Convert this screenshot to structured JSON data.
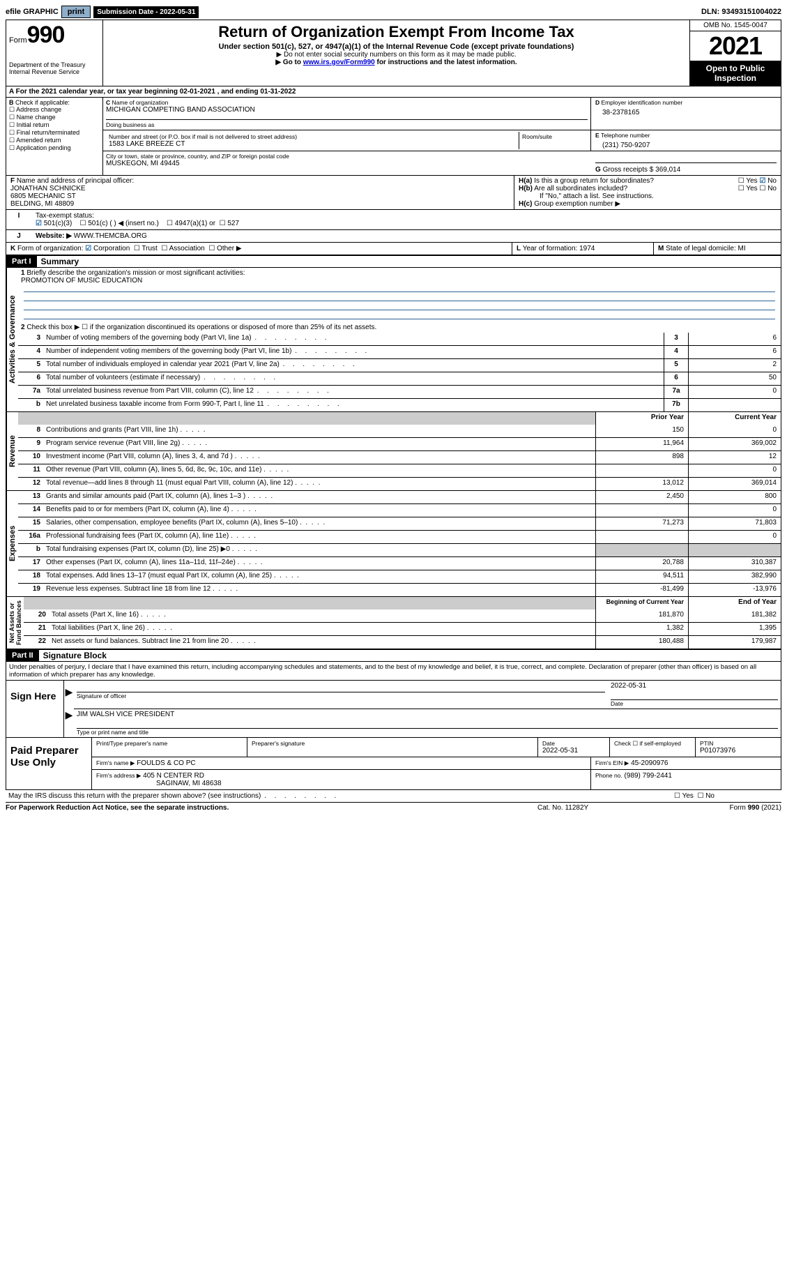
{
  "topbar": {
    "efile_label": "efile GRAPHIC",
    "print": "print",
    "sub_label": "Submission Date - 2022-05-31",
    "dln": "DLN: 93493151004022"
  },
  "header": {
    "form_word": "Form",
    "form_num": "990",
    "dept": "Department of the Treasury",
    "irs": "Internal Revenue Service",
    "title": "Return of Organization Exempt From Income Tax",
    "sub": "Under section 501(c), 527, or 4947(a)(1) of the Internal Revenue Code (except private foundations)",
    "note1": "Do not enter social security numbers on this form as it may be made public.",
    "note2_pre": "Go to ",
    "note2_link": "www.irs.gov/Form990",
    "note2_post": " for instructions and the latest information.",
    "omb": "OMB No. 1545-0047",
    "year": "2021",
    "open": "Open to Public Inspection"
  },
  "A": {
    "text": "For the 2021 calendar year, or tax year beginning 02-01-2021   , and ending 01-31-2022"
  },
  "B": {
    "label": "Check if applicable:",
    "items": [
      "Address change",
      "Name change",
      "Initial return",
      "Final return/terminated",
      "Amended return",
      "Application pending"
    ]
  },
  "C": {
    "name_label": "Name of organization",
    "name": "MICHIGAN COMPETING BAND ASSOCIATION",
    "dba_label": "Doing business as",
    "dba": "",
    "street_label": "Number and street (or P.O. box if mail is not delivered to street address)",
    "room_label": "Room/suite",
    "street": "1583 LAKE BREEZE CT",
    "city_label": "City or town, state or province, country, and ZIP or foreign postal code",
    "city": "MUSKEGON, MI  49445"
  },
  "D": {
    "label": "Employer identification number",
    "val": "38-2378165"
  },
  "E": {
    "label": "Telephone number",
    "val": "(231) 750-9207"
  },
  "G": {
    "label": "Gross receipts $",
    "val": "369,014"
  },
  "F": {
    "label": "Name and address of principal officer:",
    "name": "JONATHAN SCHNICKE",
    "addr1": "6805 MECHANIC ST",
    "addr2": "BELDING, MI  48809"
  },
  "H": {
    "a": "Is this a group return for subordinates?",
    "a_yes": "Yes",
    "a_no": "No",
    "b": "Are all subordinates included?",
    "b_note": "If \"No,\" attach a list. See instructions.",
    "c": "Group exemption number ▶"
  },
  "I": {
    "label": "Tax-exempt status:",
    "o1": "501(c)(3)",
    "o2": "501(c) (  ) ◀ (insert no.)",
    "o3": "4947(a)(1) or",
    "o4": "527"
  },
  "J": {
    "label": "Website: ▶",
    "val": "WWW.THEMCBA.ORG"
  },
  "K": {
    "label": "Form of organization:",
    "o1": "Corporation",
    "o2": "Trust",
    "o3": "Association",
    "o4": "Other ▶"
  },
  "L": {
    "label": "Year of formation:",
    "val": "1974"
  },
  "M": {
    "label": "State of legal domicile:",
    "val": "MI"
  },
  "part1": {
    "hdr": "Part I",
    "title": "Summary",
    "q1": "Briefly describe the organization's mission or most significant activities:",
    "mission": "PROMOTION OF MUSIC EDUCATION",
    "q2": "Check this box ▶ ☐  if the organization discontinued its operations or disposed of more than 25% of its net assets.",
    "rows_gov": [
      {
        "n": "3",
        "d": "Number of voting members of the governing body (Part VI, line 1a)",
        "box": "3",
        "v": "6"
      },
      {
        "n": "4",
        "d": "Number of independent voting members of the governing body (Part VI, line 1b)",
        "box": "4",
        "v": "6"
      },
      {
        "n": "5",
        "d": "Total number of individuals employed in calendar year 2021 (Part V, line 2a)",
        "box": "5",
        "v": "2"
      },
      {
        "n": "6",
        "d": "Total number of volunteers (estimate if necessary)",
        "box": "6",
        "v": "50"
      },
      {
        "n": "7a",
        "d": "Total unrelated business revenue from Part VIII, column (C), line 12",
        "box": "7a",
        "v": "0"
      },
      {
        "n": "b",
        "d": "Net unrelated business taxable income from Form 990-T, Part I, line 11",
        "box": "7b",
        "v": ""
      }
    ],
    "col_prior": "Prior Year",
    "col_curr": "Current Year",
    "rows_rev": [
      {
        "n": "8",
        "d": "Contributions and grants (Part VIII, line 1h)",
        "p": "150",
        "c": "0"
      },
      {
        "n": "9",
        "d": "Program service revenue (Part VIII, line 2g)",
        "p": "11,964",
        "c": "369,002"
      },
      {
        "n": "10",
        "d": "Investment income (Part VIII, column (A), lines 3, 4, and 7d )",
        "p": "898",
        "c": "12"
      },
      {
        "n": "11",
        "d": "Other revenue (Part VIII, column (A), lines 5, 6d, 8c, 9c, 10c, and 11e)",
        "p": "",
        "c": "0"
      },
      {
        "n": "12",
        "d": "Total revenue—add lines 8 through 11 (must equal Part VIII, column (A), line 12)",
        "p": "13,012",
        "c": "369,014"
      }
    ],
    "rows_exp": [
      {
        "n": "13",
        "d": "Grants and similar amounts paid (Part IX, column (A), lines 1–3 )",
        "p": "2,450",
        "c": "800"
      },
      {
        "n": "14",
        "d": "Benefits paid to or for members (Part IX, column (A), line 4)",
        "p": "",
        "c": "0"
      },
      {
        "n": "15",
        "d": "Salaries, other compensation, employee benefits (Part IX, column (A), lines 5–10)",
        "p": "71,273",
        "c": "71,803"
      },
      {
        "n": "16a",
        "d": "Professional fundraising fees (Part IX, column (A), line 11e)",
        "p": "",
        "c": "0"
      },
      {
        "n": "b",
        "d": "Total fundraising expenses (Part IX, column (D), line 25) ▶0",
        "p": "__shade__",
        "c": "__shade__"
      },
      {
        "n": "17",
        "d": "Other expenses (Part IX, column (A), lines 11a–11d, 11f–24e)",
        "p": "20,788",
        "c": "310,387"
      },
      {
        "n": "18",
        "d": "Total expenses. Add lines 13–17 (must equal Part IX, column (A), line 25)",
        "p": "94,511",
        "c": "382,990"
      },
      {
        "n": "19",
        "d": "Revenue less expenses. Subtract line 18 from line 12",
        "p": "-81,499",
        "c": "-13,976"
      }
    ],
    "col_begin": "Beginning of Current Year",
    "col_end": "End of Year",
    "rows_net": [
      {
        "n": "20",
        "d": "Total assets (Part X, line 16)",
        "p": "181,870",
        "c": "181,382"
      },
      {
        "n": "21",
        "d": "Total liabilities (Part X, line 26)",
        "p": "1,382",
        "c": "1,395"
      },
      {
        "n": "22",
        "d": "Net assets or fund balances. Subtract line 21 from line 20",
        "p": "180,488",
        "c": "179,987"
      }
    ]
  },
  "part2": {
    "hdr": "Part II",
    "title": "Signature Block",
    "decl": "Under penalties of perjury, I declare that I have examined this return, including accompanying schedules and statements, and to the best of my knowledge and belief, it is true, correct, and complete. Declaration of preparer (other than officer) is based on all information of which preparer has any knowledge.",
    "sign_here": "Sign Here",
    "sig_officer": "Signature of officer",
    "sig_date": "Date",
    "date_val": "2022-05-31",
    "officer_name": "JIM WALSH  VICE PRESIDENT",
    "officer_label": "Type or print name and title"
  },
  "paid": {
    "left": "Paid Preparer Use Only",
    "c1": "Print/Type preparer's name",
    "c2": "Preparer's signature",
    "c3": "Date",
    "c3v": "2022-05-31",
    "c4": "Check ☐ if self-employed",
    "c5l": "PTIN",
    "c5v": "P01073976",
    "firm_name_l": "Firm's name    ▶",
    "firm_name": "FOULDS & CO PC",
    "firm_ein_l": "Firm's EIN ▶",
    "firm_ein": "45-2090976",
    "firm_addr_l": "Firm's address ▶",
    "firm_addr1": "405 N CENTER RD",
    "firm_addr2": "SAGINAW, MI  48638",
    "phone_l": "Phone no.",
    "phone": "(989) 799-2441"
  },
  "discuss": "May the IRS discuss this return with the preparer shown above? (see instructions)",
  "discuss_yes": "Yes",
  "discuss_no": "No",
  "foot": {
    "pra": "For Paperwork Reduction Act Notice, see the separate instructions.",
    "cat": "Cat. No. 11282Y",
    "form": "Form 990 (2021)"
  }
}
